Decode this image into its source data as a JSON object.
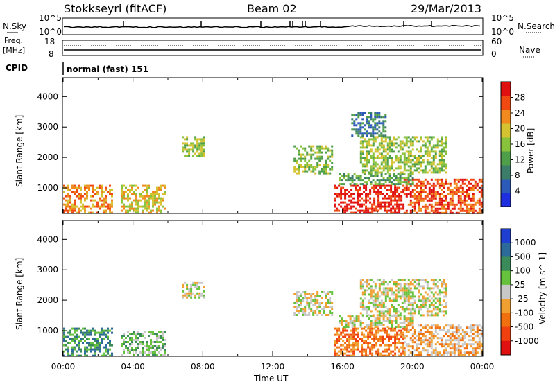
{
  "header": {
    "station": "Stokkseyri (fitACF)",
    "beam": "Beam 02",
    "date": "29/Mar/2013"
  },
  "noise_panel": {
    "left_label": "N.Sky",
    "left_ticks": [
      "10^5",
      "10^0"
    ],
    "right_label": "N.Search",
    "right_ticks": [
      "10^5",
      "10^0"
    ]
  },
  "freq_panel": {
    "left_label_1": "Freq.",
    "left_label_2": "[MHz]",
    "left_ticks": [
      "18",
      "8"
    ],
    "right_label": "Nave",
    "right_ticks": [
      "60",
      "0"
    ]
  },
  "cpid_panel": {
    "label": "CPID",
    "text": "normal (fast) 151"
  },
  "chart_data": [
    {
      "type": "heatmap",
      "name": "power",
      "ylabel": "Slant Range [km]",
      "yticks": [
        1000,
        2000,
        3000,
        4000
      ],
      "ylim": [
        180,
        4600
      ],
      "xlim": [
        0,
        24
      ],
      "colorbar": {
        "label": "Power [dB]",
        "ticks": [
          "4",
          "8",
          "12",
          "16",
          "20",
          "24",
          "28"
        ],
        "colors": [
          "#1f2fe0",
          "#2c5ab8",
          "#3c7d6a",
          "#4f9e4a",
          "#88c23c",
          "#d4c230",
          "#f08a1e",
          "#f04a12",
          "#e01010"
        ]
      },
      "regions": [
        {
          "x": [
            0.0,
            2.8
          ],
          "y": [
            200,
            1100
          ],
          "level": 6
        },
        {
          "x": [
            3.3,
            5.9
          ],
          "y": [
            200,
            1100
          ],
          "level": 5
        },
        {
          "x": [
            6.8,
            8.0
          ],
          "y": [
            2050,
            2700
          ],
          "level": 4
        },
        {
          "x": [
            13.2,
            15.4
          ],
          "y": [
            1500,
            2400
          ],
          "level": 4
        },
        {
          "x": [
            15.5,
            19.5
          ],
          "y": [
            200,
            1100
          ],
          "level": 8
        },
        {
          "x": [
            19.5,
            24.0
          ],
          "y": [
            200,
            1300
          ],
          "level": 7
        },
        {
          "x": [
            15.8,
            20.0
          ],
          "y": [
            1100,
            1500
          ],
          "level": 3
        },
        {
          "x": [
            17.0,
            22.0
          ],
          "y": [
            1500,
            2700
          ],
          "level": 4
        },
        {
          "x": [
            16.5,
            18.5
          ],
          "y": [
            2700,
            3500
          ],
          "level": 2
        }
      ]
    },
    {
      "type": "heatmap",
      "name": "velocity",
      "ylabel": "Slant Range [km]",
      "xlabel": "Time UT",
      "xticks": [
        "00:00",
        "04:00",
        "08:00",
        "12:00",
        "16:00",
        "20:00",
        "00:00"
      ],
      "yticks": [
        1000,
        2000,
        3000,
        4000
      ],
      "ylim": [
        180,
        4600
      ],
      "xlim": [
        0,
        24
      ],
      "colorbar": {
        "label": "Velocity [m s^-1]",
        "ticks": [
          "1000",
          "500",
          "100",
          "25",
          "-25",
          "-100",
          "-500",
          "-1000"
        ],
        "colors": [
          "#1f3fd0",
          "#2c6a9a",
          "#3a8a5a",
          "#66c23c",
          "#c8c8c8",
          "#f0a030",
          "#f07010",
          "#f04010",
          "#e01010"
        ]
      },
      "regions": [
        {
          "x": [
            0.0,
            2.8
          ],
          "y": [
            200,
            1100
          ],
          "level": 2
        },
        {
          "x": [
            3.3,
            5.9
          ],
          "y": [
            200,
            1000
          ],
          "level": 3
        },
        {
          "x": [
            6.8,
            8.0
          ],
          "y": [
            2100,
            2600
          ],
          "level": 4
        },
        {
          "x": [
            13.2,
            15.4
          ],
          "y": [
            1500,
            2300
          ],
          "level": 4
        },
        {
          "x": [
            15.5,
            19.5
          ],
          "y": [
            200,
            1100
          ],
          "level": 6
        },
        {
          "x": [
            19.5,
            24.0
          ],
          "y": [
            200,
            1200
          ],
          "level": 5
        },
        {
          "x": [
            15.8,
            20.0
          ],
          "y": [
            1100,
            1500
          ],
          "level": 4
        },
        {
          "x": [
            17.0,
            22.0
          ],
          "y": [
            1500,
            2700
          ],
          "level": 4
        }
      ]
    }
  ]
}
